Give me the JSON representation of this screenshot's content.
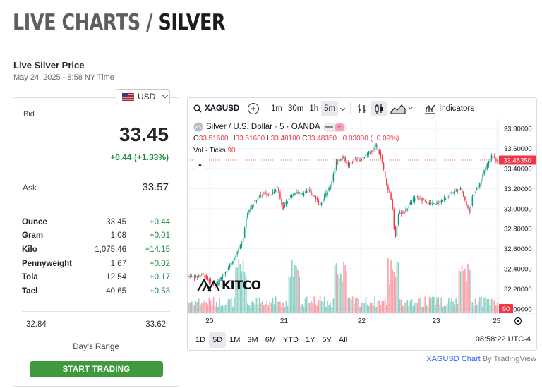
{
  "header": {
    "title_part1": "LIVE CHARTS",
    "title_sep": " / ",
    "title_part2": "SILVER"
  },
  "price_info": {
    "heading": "Live Silver Price",
    "date": "May 24, 2025 - 8:58 NY Time"
  },
  "currency": {
    "selected": "USD",
    "flag_icon": "us-flag-icon"
  },
  "bid": {
    "label": "Bid",
    "value": "33.45",
    "change": "+0.44 (+1.33%)"
  },
  "ask": {
    "label": "Ask",
    "value": "33.57"
  },
  "units": [
    {
      "name": "Ounce",
      "value": "33.45",
      "change": "+0.44"
    },
    {
      "name": "Gram",
      "value": "1.08",
      "change": "+0.01"
    },
    {
      "name": "Kilo",
      "value": "1,075.46",
      "change": "+14.15"
    },
    {
      "name": "Pennyweight",
      "value": "1.67",
      "change": "+0.02"
    },
    {
      "name": "Tola",
      "value": "12.54",
      "change": "+0.17"
    },
    {
      "name": "Tael",
      "value": "40.65",
      "change": "+0.53"
    }
  ],
  "range": {
    "low": "32.84",
    "high": "33.62",
    "label": "Day's Range"
  },
  "cta": {
    "label": "START TRADING"
  },
  "chart": {
    "symbol": "XAGUSD",
    "intervals": [
      "1m",
      "30m",
      "1h",
      "5m"
    ],
    "active_interval": "5m",
    "indicators_label": "Indicators",
    "legend_title": "Silver / U.S. Dollar · 5 · OANDA",
    "ohlc": {
      "o_label": "O",
      "o": "33.51600",
      "h_label": "H",
      "h": "33.51600",
      "l_label": "L",
      "l": "33.48100",
      "c_label": "C",
      "c": "33.48350",
      "chg": "−0.03000 (−0.09%)"
    },
    "vol_label": "Vol · Ticks",
    "vol_value": "90",
    "price_ticks": [
      "33.80000",
      "33.60000",
      "33.40000",
      "33.20000",
      "33.00000",
      "32.80000",
      "32.60000",
      "32.40000",
      "32.20000",
      "32.00000"
    ],
    "current_price_tag": "33.48350",
    "vol_tag": "90",
    "date_ticks": [
      "20",
      "21",
      "22",
      "23",
      "25"
    ],
    "ranges": [
      "1D",
      "5D",
      "1M",
      "3M",
      "6M",
      "YTD",
      "1Y",
      "5Y",
      "All"
    ],
    "active_range": "5D",
    "time": "08:58:22 UTC-4",
    "watermark": "KITCO"
  },
  "chart_data": {
    "type": "line",
    "title": "Silver / U.S. Dollar · 5 · OANDA",
    "xlabel": "",
    "ylabel": "",
    "x": [
      "20",
      "21",
      "22",
      "23",
      "25"
    ],
    "ylim": [
      32.0,
      33.8
    ],
    "grid": true,
    "series": [
      {
        "name": "Silver / U.S. Dollar",
        "points": [
          [
            0.0,
            32.33
          ],
          [
            0.03,
            32.32
          ],
          [
            0.05,
            32.35
          ],
          [
            0.07,
            32.28
          ],
          [
            0.09,
            32.22
          ],
          [
            0.11,
            32.31
          ],
          [
            0.14,
            32.45
          ],
          [
            0.16,
            32.55
          ],
          [
            0.18,
            32.68
          ],
          [
            0.19,
            32.92
          ],
          [
            0.21,
            33.04
          ],
          [
            0.23,
            33.12
          ],
          [
            0.25,
            33.16
          ],
          [
            0.27,
            33.13
          ],
          [
            0.29,
            33.22
          ],
          [
            0.31,
            33.0
          ],
          [
            0.33,
            33.12
          ],
          [
            0.35,
            33.17
          ],
          [
            0.37,
            33.14
          ],
          [
            0.39,
            33.18
          ],
          [
            0.41,
            33.12
          ],
          [
            0.43,
            33.05
          ],
          [
            0.44,
            33.12
          ],
          [
            0.46,
            33.2
          ],
          [
            0.48,
            33.46
          ],
          [
            0.5,
            33.52
          ],
          [
            0.52,
            33.43
          ],
          [
            0.54,
            33.5
          ],
          [
            0.56,
            33.49
          ],
          [
            0.58,
            33.55
          ],
          [
            0.6,
            33.58
          ],
          [
            0.61,
            33.64
          ],
          [
            0.63,
            33.45
          ],
          [
            0.64,
            33.26
          ],
          [
            0.66,
            33.08
          ],
          [
            0.67,
            32.68
          ],
          [
            0.68,
            32.95
          ],
          [
            0.7,
            32.96
          ],
          [
            0.72,
            33.06
          ],
          [
            0.74,
            33.12
          ],
          [
            0.77,
            33.06
          ],
          [
            0.8,
            33.04
          ],
          [
            0.82,
            33.08
          ],
          [
            0.84,
            33.12
          ],
          [
            0.86,
            33.16
          ],
          [
            0.88,
            33.2
          ],
          [
            0.89,
            33.14
          ],
          [
            0.9,
            33.04
          ],
          [
            0.91,
            32.95
          ],
          [
            0.92,
            33.14
          ],
          [
            0.94,
            33.23
          ],
          [
            0.96,
            33.4
          ],
          [
            0.98,
            33.52
          ],
          [
            1.0,
            33.48
          ]
        ]
      }
    ],
    "volume_last": 90
  }
}
